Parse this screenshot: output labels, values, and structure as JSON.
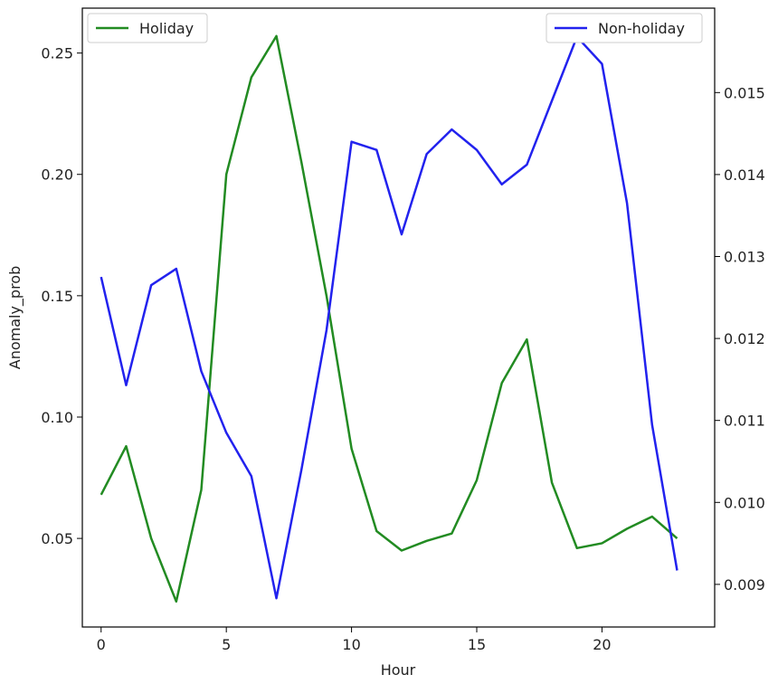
{
  "chart_data": {
    "type": "line",
    "xlabel": "Hour",
    "ylabel": "Anomaly_prob",
    "ylabel_right": "",
    "grid": false,
    "x": [
      0,
      1,
      2,
      3,
      4,
      5,
      6,
      7,
      8,
      9,
      10,
      11,
      12,
      13,
      14,
      15,
      16,
      17,
      18,
      19,
      20,
      21,
      22,
      23
    ],
    "xlim": [
      -0.75,
      24.5
    ],
    "xticks": [
      0,
      5,
      10,
      15,
      20
    ],
    "xtick_labels": [
      "0",
      "5",
      "10",
      "15",
      "20"
    ],
    "ylim_left": [
      0.0135,
      0.2685
    ],
    "yticks_left": [
      0.05,
      0.1,
      0.15,
      0.2,
      0.25
    ],
    "ytick_labels_left": [
      "0.05",
      "0.10",
      "0.15",
      "0.20",
      "0.25"
    ],
    "ylim_right": [
      0.00848,
      0.01603
    ],
    "yticks_right": [
      0.009,
      0.01,
      0.011,
      0.012,
      0.013,
      0.014,
      0.015
    ],
    "ytick_labels_right": [
      "0.009",
      "0.010",
      "0.011",
      "0.012",
      "0.013",
      "0.014",
      "0.015"
    ],
    "series": [
      {
        "name": "Holiday",
        "axis": "left",
        "color": "#228b22",
        "legend_position": "upper-left",
        "values": [
          0.068,
          0.088,
          0.05,
          0.024,
          0.07,
          0.2,
          0.24,
          0.257,
          0.205,
          0.15,
          0.087,
          0.053,
          0.045,
          0.049,
          0.052,
          0.074,
          0.114,
          0.132,
          0.073,
          0.046,
          0.048,
          0.054,
          0.059,
          0.05
        ]
      },
      {
        "name": "Non-holiday",
        "axis": "right",
        "color": "#2222ee",
        "legend_position": "upper-right",
        "values": [
          0.01275,
          0.01143,
          0.01265,
          0.01285,
          0.0116,
          0.01085,
          0.01032,
          0.00883,
          0.0104,
          0.0121,
          0.0144,
          0.0143,
          0.01327,
          0.01425,
          0.01455,
          0.0143,
          0.01388,
          0.01412,
          0.0149,
          0.01568,
          0.01535,
          0.01365,
          0.01095,
          0.00917
        ]
      }
    ]
  }
}
